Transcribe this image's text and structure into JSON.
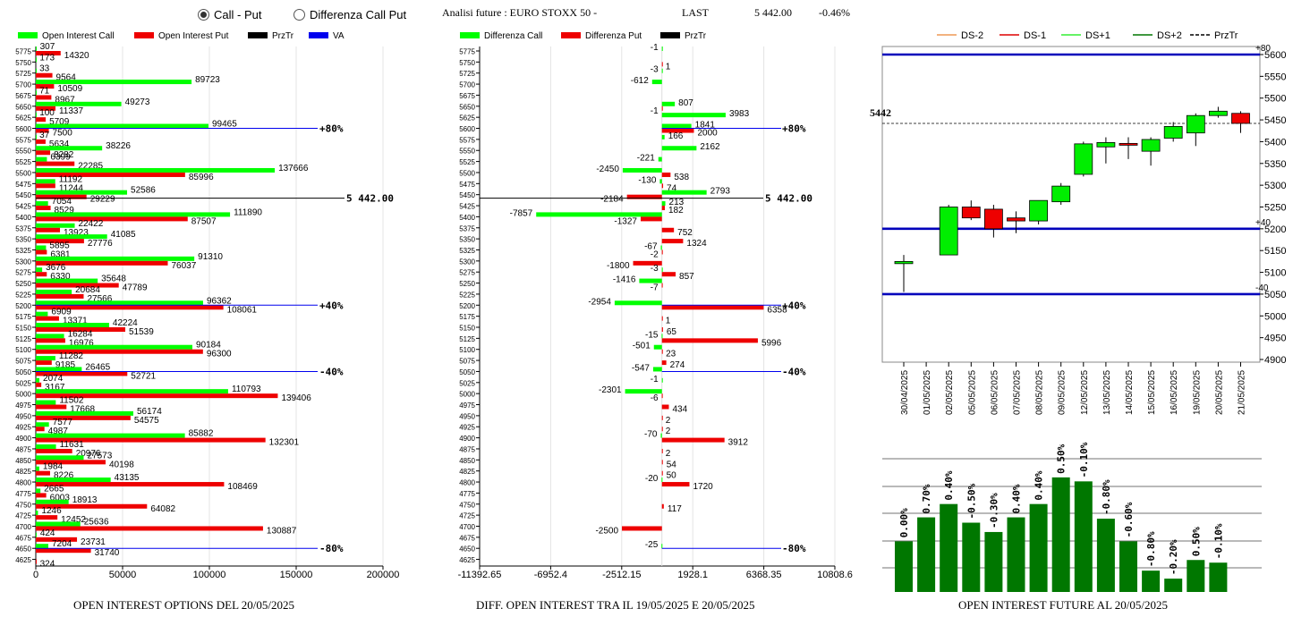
{
  "header": {
    "radio_call_put": "Call - Put",
    "radio_diff": "Differenza Call Put",
    "analysis_title": "Analisi future : EURO STOXX 50 -",
    "last_label": "LAST",
    "last_value": "5 442.00",
    "last_change": "-0.46%"
  },
  "footers": {
    "left": "OPEN INTEREST OPTIONS DEL 20/05/2025",
    "mid": "DIFF. OPEN INTEREST TRA IL 19/05/2025 E 20/05/2025",
    "right": "OPEN INTEREST FUTURE AL 20/05/2025"
  },
  "colors": {
    "call": "#00ff00",
    "put": "#ee0000",
    "prztr": "#000000",
    "va": "#0000ee",
    "bar_green": "#007700",
    "ref_line": "#0000bb"
  },
  "chart_data": [
    {
      "type": "bar",
      "orientation": "horizontal",
      "legend": [
        "Open Interest Call",
        "Open Interest Put",
        "PrzTr",
        "VA"
      ],
      "strikes": [
        5775,
        5750,
        5725,
        5700,
        5675,
        5650,
        5625,
        5600,
        5575,
        5550,
        5525,
        5500,
        5475,
        5450,
        5425,
        5400,
        5375,
        5350,
        5325,
        5300,
        5275,
        5250,
        5225,
        5200,
        5175,
        5150,
        5125,
        5100,
        5075,
        5050,
        5025,
        5000,
        4975,
        4950,
        4925,
        4900,
        4875,
        4850,
        4825,
        4800,
        4775,
        4750,
        4725,
        4700,
        4675,
        4650,
        4625
      ],
      "call": [
        307,
        173,
        33,
        89723,
        71,
        49273,
        100,
        99465,
        37,
        38226,
        6399,
        137666,
        11192,
        52586,
        7054,
        111890,
        22422,
        41085,
        5895,
        91310,
        3676,
        35648,
        20684,
        96362,
        6909,
        42224,
        16284,
        90184,
        11282,
        26465,
        2074,
        110793,
        11502,
        56174,
        7577,
        85882,
        11631,
        27573,
        1984,
        43135,
        2665,
        18913,
        1246,
        25636,
        424,
        7204,
        0
      ],
      "put": [
        14320,
        0,
        9564,
        10509,
        8967,
        11337,
        5709,
        7500,
        5634,
        8282,
        22285,
        85996,
        11244,
        29229,
        8529,
        87507,
        13923,
        27776,
        6381,
        76037,
        6330,
        47789,
        27566,
        108061,
        13371,
        51539,
        16976,
        96300,
        9185,
        52721,
        3167,
        139406,
        17668,
        54575,
        4987,
        132301,
        20976,
        40198,
        8226,
        108469,
        6003,
        64082,
        12452,
        130887,
        23731,
        31740,
        324
      ],
      "xticks": [
        0,
        50000,
        100000,
        150000,
        200000
      ],
      "xlim": [
        0,
        205000
      ],
      "price_line": {
        "strike": 5442,
        "label": "5442.00"
      },
      "level_markers": [
        {
          "strike": 5600,
          "label": "+80%"
        },
        {
          "strike": 5200,
          "label": "+40%"
        },
        {
          "strike": 5050,
          "label": "-40%"
        },
        {
          "strike": 4650,
          "label": "-80%"
        }
      ],
      "title": "OPEN INTEREST OPTIONS DEL 20/05/2025"
    },
    {
      "type": "bar",
      "orientation": "horizontal",
      "legend": [
        "Differenza Call",
        "Differenza Put",
        "PrzTr"
      ],
      "strikes": [
        5775,
        5750,
        5725,
        5700,
        5675,
        5650,
        5625,
        5600,
        5575,
        5550,
        5525,
        5500,
        5475,
        5450,
        5425,
        5400,
        5375,
        5350,
        5325,
        5300,
        5275,
        5250,
        5225,
        5200,
        5175,
        5150,
        5125,
        5100,
        5075,
        5050,
        5025,
        5000,
        4975,
        4950,
        4925,
        4900,
        4875,
        4850,
        4825,
        4800,
        4775,
        4750,
        4725,
        4700,
        4675,
        4650,
        4625
      ],
      "diff_call": [
        -1,
        0,
        -3,
        -612,
        0,
        807,
        3983,
        1841,
        166,
        2162,
        -221,
        -2450,
        -130,
        2793,
        213,
        -7857,
        0,
        0,
        -67,
        0,
        -3,
        -1416,
        0,
        -2954,
        0,
        0,
        -15,
        -501,
        0,
        -547,
        -1,
        -2301,
        0,
        0,
        0,
        -70,
        0,
        0,
        0,
        -20,
        0,
        0,
        0,
        0,
        0,
        -25,
        0
      ],
      "diff_put": [
        0,
        1,
        0,
        0,
        0,
        -1,
        0,
        2000,
        0,
        0,
        0,
        538,
        74,
        -2184,
        182,
        -1327,
        752,
        1324,
        -2,
        -1800,
        857,
        -7,
        0,
        6358,
        1,
        65,
        5996,
        23,
        274,
        0,
        0,
        -6,
        434,
        2,
        2,
        3912,
        2,
        54,
        50,
        1720,
        0,
        117,
        0,
        -2500,
        0,
        0,
        0
      ],
      "xticks": [
        -11392.65,
        -6952.4,
        -2512.15,
        1928.1,
        6368.35,
        10808.6
      ],
      "xtick_labels": [
        "-11392.65",
        "-6952.4",
        "-2512.15",
        "1928.1",
        "6368.35",
        "10808.6"
      ],
      "xlim": [
        -11392.65,
        10808.6
      ],
      "price_line": {
        "strike": 5442,
        "label": "5442.00"
      },
      "level_markers": [
        {
          "strike": 5600,
          "label": "+80%"
        },
        {
          "strike": 5200,
          "label": "+40%"
        },
        {
          "strike": 5050,
          "label": "-40%"
        },
        {
          "strike": 4650,
          "label": "-80%"
        }
      ],
      "title": "DIFF. OPEN INTEREST TRA IL 19/05/2025 E 20/05/2025"
    },
    {
      "type": "candlestick",
      "legend": [
        "DS-2",
        "DS-1",
        "DS+1",
        "DS+2",
        "PrzTr"
      ],
      "legend_colors": [
        "#ee9955",
        "#dd0000",
        "#33ee33",
        "#007700",
        "#000000"
      ],
      "dates": [
        "30/04/2025",
        "01/05/2025",
        "02/05/2025",
        "05/05/2025",
        "06/05/2025",
        "07/05/2025",
        "08/05/2025",
        "09/05/2025",
        "12/05/2025",
        "13/05/2025",
        "14/05/2025",
        "15/05/2025",
        "16/05/2025",
        "19/05/2025",
        "20/05/2025",
        "21/05/2025"
      ],
      "ohlc": [
        [
          5120,
          5140,
          5055,
          5125
        ],
        null,
        [
          5140,
          5255,
          5140,
          5250
        ],
        [
          5250,
          5265,
          5220,
          5225
        ],
        [
          5245,
          5255,
          5180,
          5200
        ],
        [
          5225,
          5240,
          5190,
          5218
        ],
        [
          5218,
          5265,
          5210,
          5265
        ],
        [
          5262,
          5305,
          5255,
          5298
        ],
        [
          5325,
          5400,
          5320,
          5395
        ],
        [
          5388,
          5410,
          5350,
          5398
        ],
        [
          5396,
          5410,
          5360,
          5394
        ],
        [
          5378,
          5410,
          5345,
          5405
        ],
        [
          5408,
          5445,
          5400,
          5435
        ],
        [
          5420,
          5465,
          5390,
          5460
        ],
        [
          5460,
          5480,
          5455,
          5470
        ],
        [
          5465,
          5470,
          5420,
          5442
        ]
      ],
      "ylim": [
        4900,
        5600
      ],
      "yticks": [
        4900,
        4950,
        5000,
        5050,
        5100,
        5150,
        5200,
        5250,
        5300,
        5350,
        5400,
        5450,
        5500,
        5550,
        5600
      ],
      "last_price": {
        "value": 5442,
        "label": "5442"
      },
      "levels": [
        {
          "value": 5600,
          "label": "+80"
        },
        {
          "value": 5200,
          "label": "+40"
        },
        {
          "value": 5050,
          "label": "-40"
        }
      ]
    },
    {
      "type": "bar",
      "categories": [
        "30/04/2025",
        "01/05/2025",
        "02/05/2025",
        "05/05/2025",
        "06/05/2025",
        "07/05/2025",
        "08/05/2025",
        "09/05/2025",
        "12/05/2025",
        "13/05/2025",
        "14/05/2025",
        "15/05/2025",
        "16/05/2025",
        "19/05/2025",
        "20/05/2025"
      ],
      "values": [
        0.0,
        0.7,
        0.4,
        -0.5,
        -0.3,
        0.4,
        0.4,
        0.5,
        -0.1,
        -0.8,
        -0.6,
        -0.8,
        -0.2,
        0.5,
        -0.1
      ],
      "data_labels": [
        "0.00%",
        "0.70%",
        "0.40%",
        "-0.50%",
        "-0.30%",
        "0.40%",
        "0.40%",
        "0.50%",
        "-0.10%",
        "-0.80%",
        "-0.60%",
        "-0.80%",
        "-0.20%",
        "0.50%",
        "-0.10%"
      ],
      "bar_levels": [
        0.38,
        0.56,
        0.66,
        0.52,
        0.45,
        0.56,
        0.66,
        0.86,
        0.83,
        0.55,
        0.38,
        0.16,
        0.1,
        0.24,
        0.22
      ],
      "title": "OPEN INTEREST FUTURE AL 20/05/2025"
    }
  ]
}
